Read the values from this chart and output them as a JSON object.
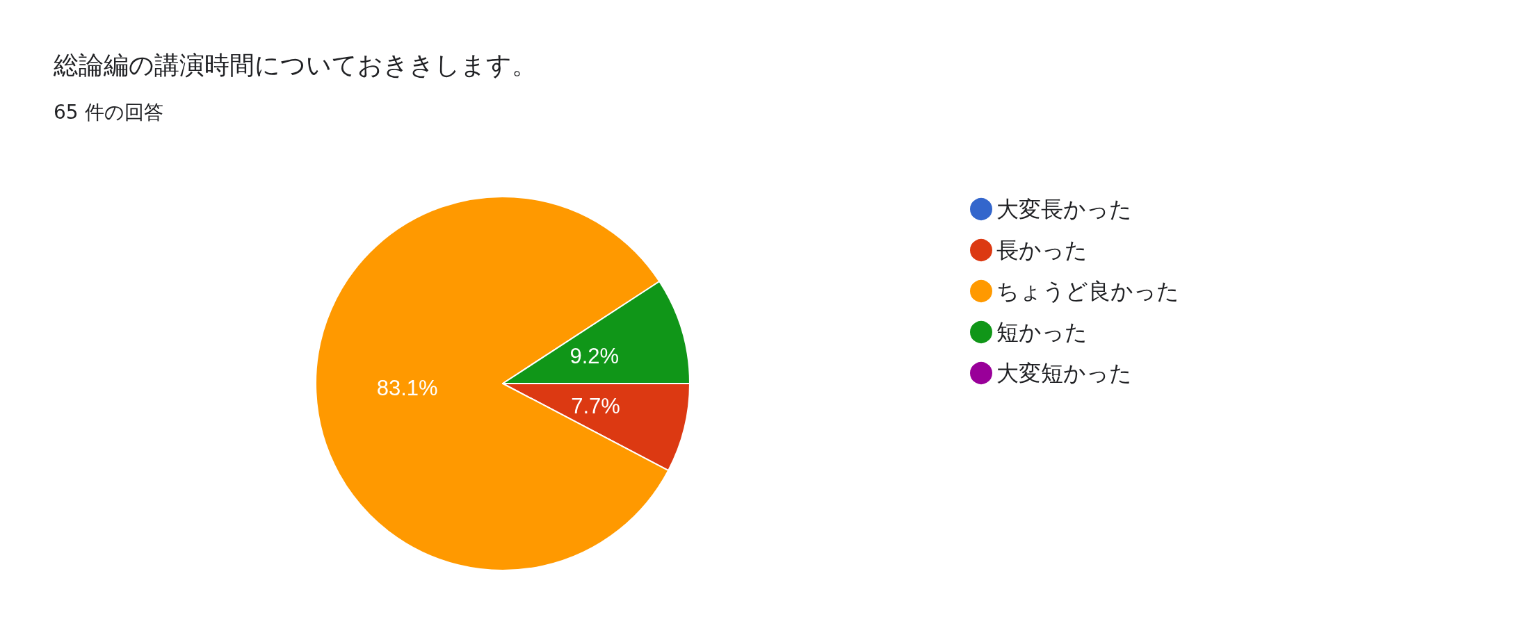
{
  "chart_data": {
    "type": "pie",
    "title": "総論編の講演時間についておききします。",
    "subtitle": "65 件の回答",
    "categories": [
      "大変長かった",
      "長かった",
      "ちょうど良かった",
      "短かった",
      "大変短かった"
    ],
    "values": [
      0,
      7.7,
      83.1,
      9.2,
      0
    ],
    "colors": [
      "#3366cc",
      "#dc3912",
      "#ff9900",
      "#109618",
      "#990099"
    ],
    "value_labels": [
      null,
      "7.7%",
      "83.1%",
      "9.2%",
      null
    ],
    "legend": "right"
  }
}
